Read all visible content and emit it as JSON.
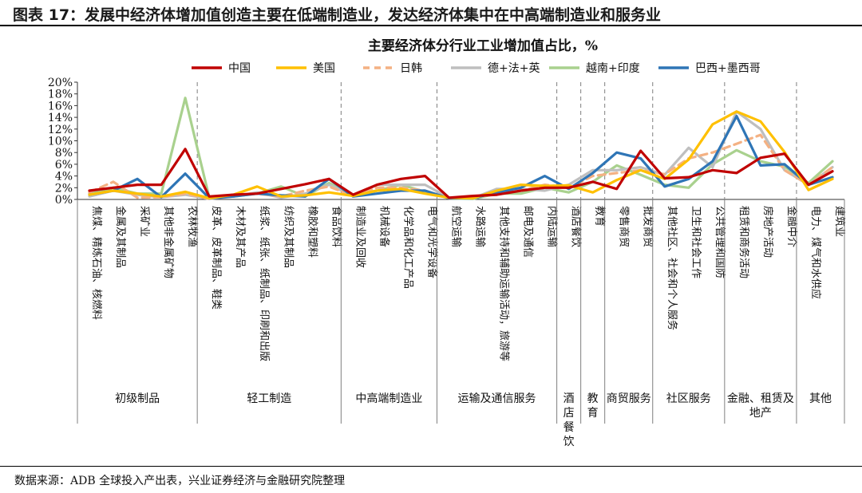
{
  "figure_title": "图表 17：发展中经济体增加值创造主要在低端制造业，发达经济体集中在中高端制造业和服务业",
  "source": "数据来源：ADB 全球投入产出表，兴业证券经济与金融研究院整理",
  "chart_data": {
    "type": "line",
    "title": "主要经济体分行业工业增加值占比，%",
    "ylim": [
      0,
      20
    ],
    "yticks": [
      "0%",
      "2%",
      "4%",
      "6%",
      "8%",
      "10%",
      "12%",
      "14%",
      "16%",
      "18%",
      "20%"
    ],
    "legend_position": "top",
    "grid": false,
    "categories": [
      "焦煤、精炼石油、核燃料",
      "金属及其制品",
      "采矿业",
      "其他非金属矿物",
      "农林牧渔",
      "皮革、皮革制品、鞋类",
      "木材及其产品",
      "纸浆、纸张、纸制品、印刷和出版",
      "纺织及其制品",
      "橡胶和塑料",
      "食品饮料",
      "制造业及回收",
      "机械设备",
      "化学品和化工产品",
      "电气和光学设备",
      "航空运输",
      "水路运输",
      "其他支持和辅助运输活动，旅游等",
      "邮电及通信",
      "内陆运输",
      "酒店餐饮",
      "教育",
      "零售商贸",
      "批发商贸",
      "其他社区、社会和个人服务",
      "卫生和社会工作",
      "公共管理和国防",
      "租赁和商务活动",
      "房地产活动",
      "金融中介",
      "电力、煤气和水供应",
      "建筑业"
    ],
    "groups": [
      {
        "label": "初级制品",
        "start": 0,
        "end": 4
      },
      {
        "label": "轻工制造",
        "start": 5,
        "end": 10
      },
      {
        "label": "中高端制造业",
        "start": 11,
        "end": 14
      },
      {
        "label": "运输及通信服务",
        "start": 15,
        "end": 19
      },
      {
        "label": "酒店餐饮",
        "start": 20,
        "end": 20
      },
      {
        "label": "教育",
        "start": 21,
        "end": 21
      },
      {
        "label": "商贸服务",
        "start": 22,
        "end": 23
      },
      {
        "label": "社区服务",
        "start": 24,
        "end": 26
      },
      {
        "label": "金融、租赁及地产",
        "start": 27,
        "end": 29
      },
      {
        "label": "其他",
        "start": 30,
        "end": 31
      }
    ],
    "series": [
      {
        "name": "中国",
        "color": "#c00000",
        "dash": false,
        "values": [
          1.5,
          2.0,
          2.5,
          2.5,
          8.6,
          0.5,
          0.8,
          1.0,
          1.8,
          2.6,
          3.5,
          0.8,
          2.5,
          3.5,
          4.0,
          0.3,
          0.6,
          0.8,
          1.5,
          2.0,
          2.0,
          3.0,
          1.8,
          8.3,
          3.6,
          3.8,
          5.0,
          4.5,
          7.1,
          7.8,
          2.5,
          4.8
        ]
      },
      {
        "name": "美国",
        "color": "#ffc000",
        "dash": false,
        "values": [
          0.8,
          1.5,
          1.0,
          0.5,
          1.3,
          0.2,
          0.8,
          2.2,
          0.5,
          0.7,
          1.2,
          0.6,
          1.5,
          1.8,
          1.0,
          0.3,
          0.2,
          1.5,
          2.5,
          2.3,
          2.4,
          1.2,
          3.3,
          5.0,
          3.5,
          6.8,
          12.8,
          15.0,
          13.3,
          8.1,
          1.6,
          3.5
        ]
      },
      {
        "name": "日韩",
        "color": "#f4b183",
        "dash": true,
        "values": [
          1.2,
          3.0,
          0.3,
          0.4,
          1.0,
          0.1,
          0.8,
          1.0,
          0.5,
          1.5,
          2.2,
          0.6,
          2.0,
          2.0,
          1.5,
          0.2,
          0.3,
          1.0,
          1.5,
          2.5,
          2.0,
          4.0,
          4.5,
          5.0,
          4.3,
          7.0,
          8.0,
          9.5,
          11.0,
          5.0,
          2.5,
          5.5
        ]
      },
      {
        "name": "德+法+英",
        "color": "#bfbfbf",
        "dash": false,
        "values": [
          0.5,
          1.5,
          0.8,
          0.4,
          0.8,
          0.1,
          0.5,
          1.2,
          0.3,
          1.0,
          2.5,
          0.6,
          2.5,
          2.5,
          2.5,
          0.3,
          0.2,
          1.8,
          1.8,
          1.5,
          2.5,
          5.0,
          5.0,
          5.5,
          4.2,
          8.8,
          5.5,
          15.0,
          12.0,
          5.0,
          2.5,
          5.5
        ]
      },
      {
        "name": "越南+印度",
        "color": "#a9d18e",
        "dash": false,
        "values": [
          1.0,
          2.0,
          1.0,
          1.0,
          17.3,
          0.3,
          0.5,
          1.0,
          2.2,
          0.5,
          2.8,
          0.8,
          1.5,
          2.5,
          1.3,
          0.2,
          0.1,
          1.0,
          1.0,
          2.0,
          1.2,
          3.0,
          5.8,
          4.2,
          2.5,
          2.0,
          6.0,
          8.4,
          6.5,
          5.6,
          2.8,
          6.5
        ]
      },
      {
        "name": "巴西+墨西哥",
        "color": "#2e75b6",
        "dash": false,
        "values": [
          0.8,
          1.5,
          3.5,
          0.4,
          4.4,
          0.2,
          0.5,
          1.0,
          0.7,
          0.5,
          3.5,
          0.5,
          1.0,
          1.5,
          1.5,
          0.2,
          0.2,
          1.2,
          2.0,
          4.0,
          1.8,
          4.5,
          8.0,
          7.0,
          2.2,
          3.5,
          6.5,
          14.2,
          5.8,
          6.0,
          2.5,
          3.8
        ]
      }
    ]
  }
}
